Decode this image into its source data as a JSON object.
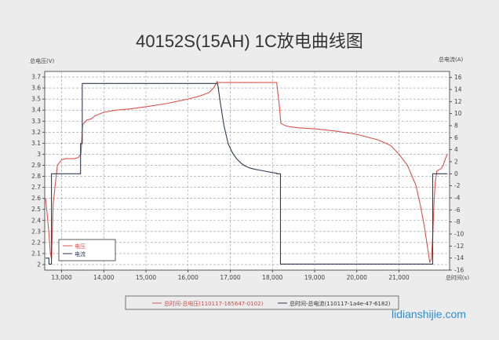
{
  "chart_data": {
    "type": "line",
    "title": "40152S(15AH) 1C放电曲线图",
    "left_axis_label": "总电压(V)",
    "right_axis_label": "总电流(A)",
    "xlabel": "总时间(s)",
    "xlim": [
      12600,
      22200
    ],
    "ylim_left": [
      1.95,
      3.75
    ],
    "ylim_right": [
      -16,
      17
    ],
    "x_ticks": [
      13000,
      14000,
      15000,
      16000,
      17000,
      18000,
      19000,
      20000,
      21000
    ],
    "x_tick_labels": [
      "13,000",
      "14,000",
      "15,000",
      "16,000",
      "17,000",
      "18,000",
      "19,000",
      "20,000",
      "21,000"
    ],
    "y_left_ticks": [
      2,
      2.1,
      2.2,
      2.3,
      2.4,
      2.5,
      2.6,
      2.7,
      2.8,
      2.9,
      3,
      3.1,
      3.2,
      3.3,
      3.4,
      3.5,
      3.6,
      3.7
    ],
    "y_left_tick_labels": [
      "2",
      "2.1",
      "2.2",
      "2.3",
      "2.4",
      "2.5",
      "2.6",
      "2.7",
      "2.8",
      "2.9",
      "3",
      "3.1",
      "3.2",
      "3.3",
      "3.4",
      "3.5",
      "3.6",
      "3.7"
    ],
    "y_right_ticks": [
      -16,
      -14,
      -12,
      -10,
      -8,
      -6,
      -4,
      -2,
      0,
      2,
      4,
      6,
      8,
      10,
      12,
      14,
      16
    ],
    "y_right_tick_labels": [
      "-16",
      "-14",
      "-12",
      "-10",
      "-8",
      "-6",
      "-4",
      "-2",
      "0",
      "2",
      "4",
      "6",
      "8",
      "10",
      "12",
      "14",
      "16"
    ],
    "grid": true,
    "legend_inner": [
      "电压",
      "电流"
    ],
    "legend_bottom": [
      "总时间-总电压(110117-165647-0102)",
      "总时间-总电流(110117-1a4e-47-6182)"
    ],
    "series": [
      {
        "name": "电压",
        "axis": "left",
        "color": "#d9534f",
        "x": [
          12620,
          12660,
          12700,
          12730,
          12760,
          12800,
          12900,
          13000,
          13100,
          13200,
          13300,
          13400,
          13460,
          13500,
          13600,
          13700,
          13800,
          14000,
          14300,
          14600,
          15000,
          15500,
          16000,
          16300,
          16500,
          16600,
          16650,
          16690,
          16700,
          16720,
          16800,
          16900,
          17000,
          17100,
          17200,
          17300,
          17400,
          17500,
          17700,
          17900,
          18100,
          18160,
          18200,
          18300,
          18400,
          18600,
          19000,
          19500,
          20000,
          20500,
          20800,
          21000,
          21200,
          21400,
          21500,
          21600,
          21680,
          21730,
          21770,
          21800,
          21830,
          21860,
          21900,
          21950,
          22000,
          22050,
          22100,
          22150
        ],
        "y": [
          2.6,
          2.45,
          2.28,
          2.12,
          2.05,
          2.55,
          2.9,
          2.95,
          2.96,
          2.96,
          2.96,
          2.97,
          3.01,
          3.27,
          3.31,
          3.32,
          3.35,
          3.38,
          3.4,
          3.41,
          3.43,
          3.46,
          3.5,
          3.53,
          3.56,
          3.6,
          3.63,
          3.66,
          3.65,
          3.65,
          3.65,
          3.65,
          3.65,
          3.65,
          3.65,
          3.65,
          3.65,
          3.65,
          3.65,
          3.65,
          3.65,
          3.45,
          3.28,
          3.26,
          3.25,
          3.24,
          3.23,
          3.21,
          3.18,
          3.13,
          3.08,
          3.0,
          2.9,
          2.72,
          2.55,
          2.35,
          2.15,
          2.02,
          2.05,
          2.25,
          2.55,
          2.75,
          2.85,
          2.86,
          2.87,
          2.9,
          2.96,
          3.0
        ]
      },
      {
        "name": "电流",
        "axis": "right",
        "color": "#2f3a55",
        "x": [
          12620,
          12700,
          12700,
          12760,
          12760,
          12800,
          12800,
          13450,
          13450,
          13490,
          13490,
          16690,
          16700,
          16760,
          16850,
          16950,
          17050,
          17150,
          17250,
          17350,
          17450,
          17550,
          17700,
          17850,
          18000,
          18100,
          18100,
          18190,
          18190,
          21730,
          21730,
          21800,
          21800,
          22150
        ],
        "y": [
          -14,
          -14,
          -15,
          -15,
          0,
          0,
          0,
          0,
          5,
          5,
          15,
          15,
          15,
          12,
          8,
          5,
          3.5,
          2.5,
          1.8,
          1.3,
          1.0,
          0.8,
          0.6,
          0.4,
          0.2,
          0.1,
          0,
          0,
          -15,
          -15,
          -15,
          -15,
          0,
          0
        ]
      }
    ]
  },
  "watermark": "lidianshijie.com"
}
